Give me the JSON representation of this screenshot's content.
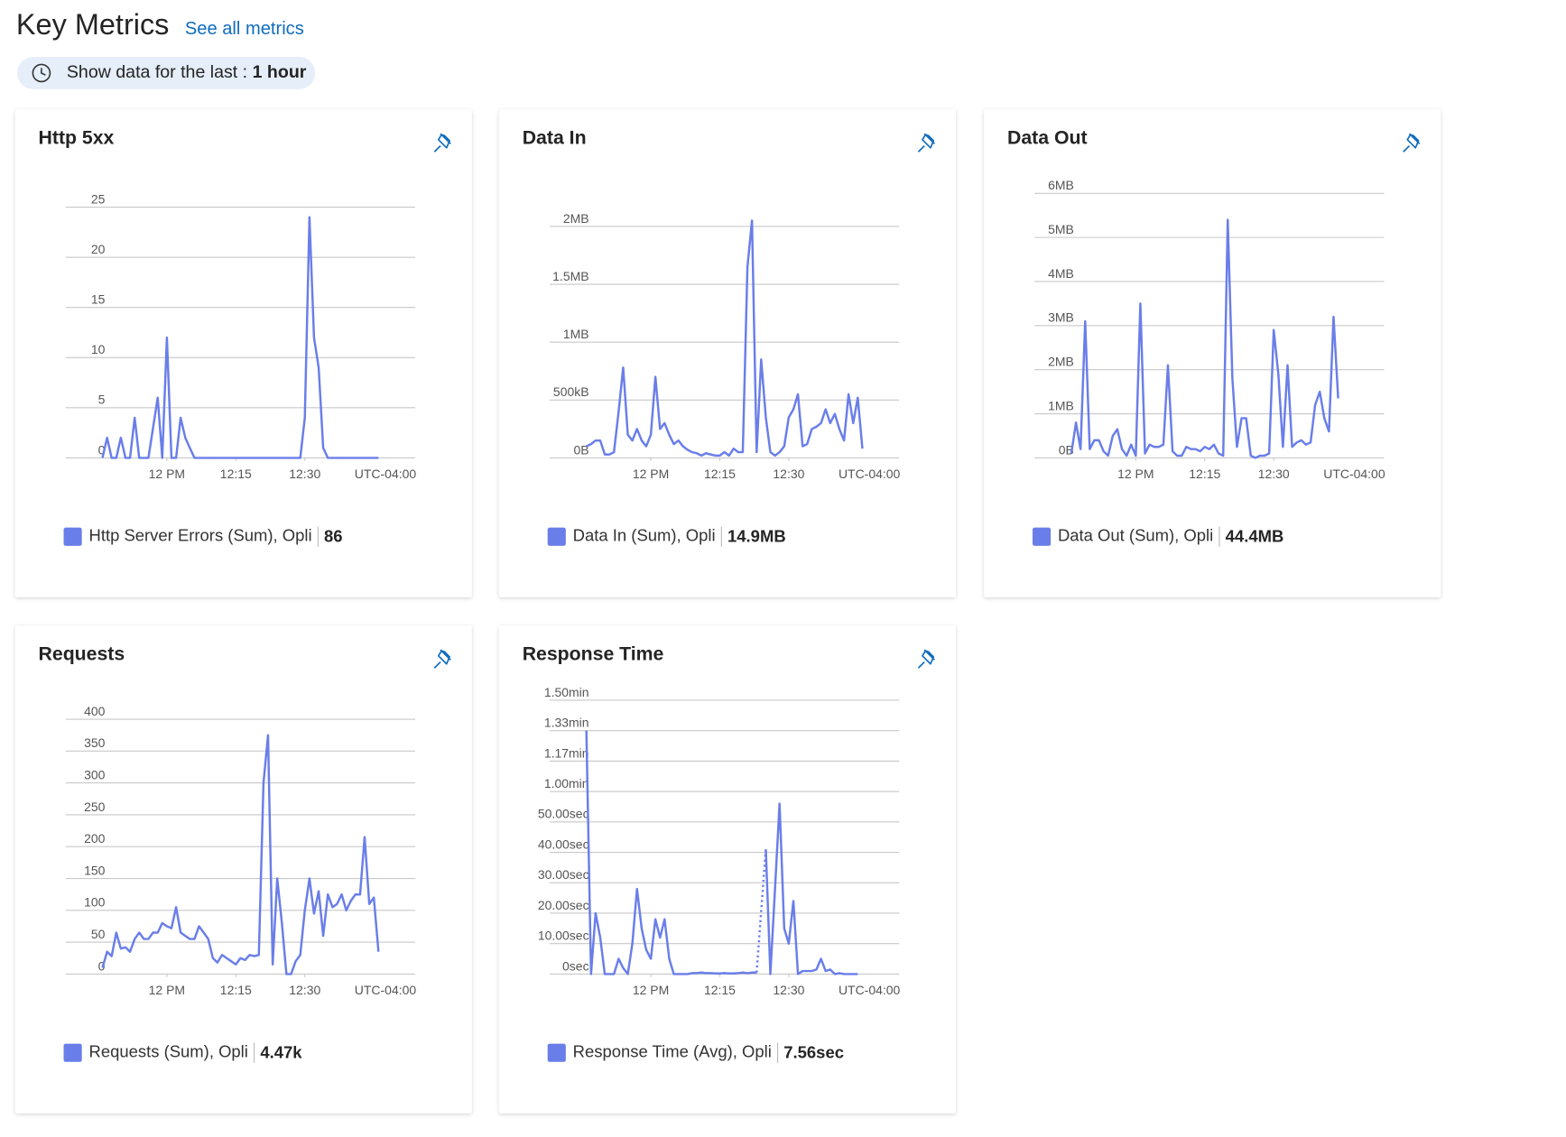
{
  "header": {
    "title": "Key Metrics",
    "link": "See all metrics"
  },
  "time_filter": {
    "label": "Show data for the last :",
    "value": "1 hour"
  },
  "chart_data": [
    {
      "type": "line",
      "title": "Http 5xx",
      "timezone": "UTC-04:00",
      "grid": true,
      "xlim": [
        698,
        774
      ],
      "xticks": [
        {
          "value": 720,
          "label": "12 PM"
        },
        {
          "value": 735,
          "label": "12:15"
        },
        {
          "value": 750,
          "label": "12:30"
        }
      ],
      "ylim": [
        0,
        27.7
      ],
      "yticks": [
        0,
        5,
        10,
        15,
        20,
        25
      ],
      "x": [
        706,
        707,
        708,
        709,
        710,
        711,
        712,
        713,
        714,
        715,
        716,
        717,
        718,
        719,
        720,
        721,
        722,
        723,
        724,
        725,
        726,
        727,
        728,
        729,
        730,
        731,
        732,
        733,
        734,
        735,
        736,
        737,
        738,
        739,
        740,
        741,
        742,
        743,
        744,
        745,
        746,
        747,
        748,
        749,
        750,
        751,
        752,
        753,
        754,
        755,
        756,
        757,
        758,
        759,
        760,
        761,
        762,
        763,
        764,
        765,
        766
      ],
      "series": [
        {
          "name": "Http Server Errors (Sum), Opli",
          "color": "#6a7ee9",
          "total": "86",
          "values": [
            0,
            2,
            0,
            0,
            2,
            0,
            0,
            4,
            0,
            0,
            0,
            3,
            6,
            0,
            12,
            0,
            0,
            4,
            2,
            1,
            0,
            0,
            0,
            0,
            0,
            0,
            0,
            0,
            0,
            0,
            0,
            0,
            0,
            0,
            0,
            0,
            0,
            0,
            0,
            0,
            0,
            0,
            0,
            0,
            4,
            24,
            12,
            9,
            1,
            0,
            0,
            0,
            0,
            0,
            0,
            0,
            0,
            0,
            0,
            0,
            0
          ]
        }
      ]
    },
    {
      "type": "line",
      "title": "Data In",
      "timezone": "UTC-04:00",
      "grid": true,
      "xlim": [
        698,
        774
      ],
      "xticks": [
        {
          "value": 720,
          "label": "12 PM"
        },
        {
          "value": 735,
          "label": "12:15"
        },
        {
          "value": 750,
          "label": "12:30"
        }
      ],
      "ylim": [
        0,
        2.4
      ],
      "yticks": [
        {
          "value": 0,
          "label": "0B"
        },
        {
          "value": 0.5,
          "label": "500kB"
        },
        {
          "value": 1,
          "label": "1MB"
        },
        {
          "value": 1.5,
          "label": "1.5MB"
        },
        {
          "value": 2,
          "label": "2MB"
        }
      ],
      "x": [
        706,
        707,
        708,
        709,
        710,
        711,
        712,
        713,
        714,
        715,
        716,
        717,
        718,
        719,
        720,
        721,
        722,
        723,
        724,
        725,
        726,
        727,
        728,
        729,
        730,
        731,
        732,
        733,
        734,
        735,
        736,
        737,
        738,
        739,
        740,
        741,
        742,
        743,
        744,
        745,
        746,
        747,
        748,
        749,
        750,
        751,
        752,
        753,
        754,
        755,
        756,
        757,
        758,
        759,
        760,
        761,
        762,
        763,
        764,
        765,
        766
      ],
      "series": [
        {
          "name": "Data In (Sum), Opli",
          "color": "#6a7ee9",
          "total": "14.9MB",
          "values": [
            0.1,
            0.12,
            0.15,
            0.15,
            0.03,
            0.03,
            0.05,
            0.4,
            0.78,
            0.2,
            0.15,
            0.25,
            0.15,
            0.1,
            0.2,
            0.7,
            0.25,
            0.3,
            0.2,
            0.12,
            0.15,
            0.1,
            0.07,
            0.05,
            0.04,
            0.02,
            0.04,
            0.03,
            0.02,
            0.02,
            0.05,
            0.02,
            0.08,
            0.05,
            0.05,
            1.65,
            2.05,
            0.05,
            0.85,
            0.35,
            0.05,
            0.02,
            0.05,
            0.1,
            0.35,
            0.42,
            0.55,
            0.1,
            0.12,
            0.25,
            0.27,
            0.3,
            0.42,
            0.3,
            0.38,
            0.25,
            0.15,
            0.55,
            0.3,
            0.52,
            0.08
          ]
        }
      ]
    },
    {
      "type": "line",
      "title": "Data Out",
      "timezone": "UTC-04:00",
      "grid": true,
      "xlim": [
        698,
        774
      ],
      "xticks": [
        {
          "value": 720,
          "label": "12 PM"
        },
        {
          "value": 735,
          "label": "12:15"
        },
        {
          "value": 750,
          "label": "12:30"
        }
      ],
      "ylim": [
        0,
        6.3
      ],
      "yticks": [
        {
          "value": 0,
          "label": "0B"
        },
        {
          "value": 1,
          "label": "1MB"
        },
        {
          "value": 2,
          "label": "2MB"
        },
        {
          "value": 3,
          "label": "3MB"
        },
        {
          "value": 4,
          "label": "4MB"
        },
        {
          "value": 5,
          "label": "5MB"
        },
        {
          "value": 6,
          "label": "6MB"
        }
      ],
      "x": [
        706,
        707,
        708,
        709,
        710,
        711,
        712,
        713,
        714,
        715,
        716,
        717,
        718,
        719,
        720,
        721,
        722,
        723,
        724,
        725,
        726,
        727,
        728,
        729,
        730,
        731,
        732,
        733,
        734,
        735,
        736,
        737,
        738,
        739,
        740,
        741,
        742,
        743,
        744,
        745,
        746,
        747,
        748,
        749,
        750,
        751,
        752,
        753,
        754,
        755,
        756,
        757,
        758,
        759,
        760,
        761,
        762,
        763,
        764,
        765,
        766
      ],
      "series": [
        {
          "name": "Data Out (Sum), Opli",
          "color": "#6a7ee9",
          "total": "44.4MB",
          "values": [
            0.1,
            0.8,
            0.2,
            3.1,
            0.2,
            0.4,
            0.4,
            0.15,
            0.05,
            0.5,
            0.65,
            0.2,
            0.05,
            0.3,
            0.05,
            3.5,
            0.1,
            0.3,
            0.25,
            0.25,
            0.3,
            2.1,
            0.15,
            0.05,
            0.05,
            0.25,
            0.2,
            0.2,
            0.15,
            0.25,
            0.2,
            0.3,
            0.1,
            0.05,
            5.4,
            1.8,
            0.25,
            0.9,
            0.9,
            0.05,
            0,
            0.05,
            0.05,
            0.1,
            2.9,
            1.9,
            0.25,
            2.1,
            0.25,
            0.35,
            0.4,
            0.3,
            0.35,
            1.2,
            1.5,
            0.9,
            0.6,
            3.2,
            1.35,
            null,
            null
          ]
        }
      ]
    },
    {
      "type": "line",
      "title": "Requests",
      "timezone": "UTC-04:00",
      "grid": true,
      "xlim": [
        698,
        774
      ],
      "xticks": [
        {
          "value": 720,
          "label": "12 PM"
        },
        {
          "value": 735,
          "label": "12:15"
        },
        {
          "value": 750,
          "label": "12:30"
        }
      ],
      "ylim": [
        0,
        436
      ],
      "yticks": [
        0,
        50,
        100,
        150,
        200,
        250,
        300,
        350,
        400
      ],
      "x": [
        706,
        707,
        708,
        709,
        710,
        711,
        712,
        713,
        714,
        715,
        716,
        717,
        718,
        719,
        720,
        721,
        722,
        723,
        724,
        725,
        726,
        727,
        728,
        729,
        730,
        731,
        732,
        733,
        734,
        735,
        736,
        737,
        738,
        739,
        740,
        741,
        742,
        743,
        744,
        745,
        746,
        747,
        748,
        749,
        750,
        751,
        752,
        753,
        754,
        755,
        756,
        757,
        758,
        759,
        760,
        761,
        762,
        763,
        764,
        765,
        766
      ],
      "series": [
        {
          "name": "Requests (Sum), Opli",
          "color": "#6a7ee9",
          "total": "4.47k",
          "values": [
            10,
            35,
            28,
            65,
            40,
            42,
            35,
            55,
            65,
            55,
            55,
            65,
            65,
            80,
            75,
            72,
            105,
            65,
            60,
            55,
            55,
            75,
            65,
            55,
            25,
            18,
            30,
            25,
            20,
            15,
            25,
            22,
            30,
            28,
            30,
            300,
            375,
            15,
            150,
            80,
            0,
            0,
            20,
            30,
            100,
            150,
            95,
            130,
            60,
            125,
            105,
            110,
            125,
            100,
            115,
            125,
            125,
            215,
            110,
            120,
            35
          ]
        }
      ]
    },
    {
      "type": "line",
      "title": "Response Time",
      "timezone": "UTC-04:00",
      "grid": true,
      "gap_style": "dotted",
      "xlim": [
        698,
        774
      ],
      "xticks": [
        {
          "value": 720,
          "label": "12 PM"
        },
        {
          "value": 735,
          "label": "12:15"
        },
        {
          "value": 750,
          "label": "12:30"
        }
      ],
      "ylim": [
        0,
        91.3
      ],
      "yticks": [
        {
          "value": 0,
          "label": "0sec"
        },
        {
          "value": 10,
          "label": "10.00sec"
        },
        {
          "value": 20,
          "label": "20.00sec"
        },
        {
          "value": 30,
          "label": "30.00sec"
        },
        {
          "value": 40,
          "label": "40.00sec"
        },
        {
          "value": 50,
          "label": "50.00sec"
        },
        {
          "value": 60,
          "label": "1.00min"
        },
        {
          "value": 70,
          "label": "1.17min"
        },
        {
          "value": 80,
          "label": "1.33min"
        },
        {
          "value": 90,
          "label": "1.50min"
        }
      ],
      "x": [
        706,
        707,
        708,
        709,
        710,
        711,
        712,
        713,
        714,
        715,
        716,
        717,
        718,
        719,
        720,
        721,
        722,
        723,
        724,
        725,
        726,
        727,
        728,
        729,
        730,
        731,
        732,
        733,
        734,
        735,
        736,
        737,
        738,
        739,
        740,
        741,
        742,
        743,
        744,
        745,
        746,
        747,
        748,
        749,
        750,
        751,
        752,
        753,
        754,
        755,
        756,
        757,
        758,
        759,
        760,
        761,
        762,
        763,
        764,
        765,
        766
      ],
      "series": [
        {
          "name": "Response Time (Avg), Opli",
          "color": "#6a7ee9",
          "total": "7.56sec",
          "values": [
            80,
            0,
            20,
            12,
            0,
            0,
            0,
            5,
            2,
            0,
            10,
            28,
            15,
            8,
            5,
            18,
            12,
            18,
            5,
            0,
            0,
            0,
            0,
            0.3,
            0.3,
            0.5,
            0.3,
            0.3,
            0.2,
            0.2,
            0.3,
            0.2,
            0.2,
            0.3,
            0.5,
            0.3,
            0.5,
            0.5,
            null,
            41,
            0,
            28,
            56,
            15,
            10,
            24,
            0,
            1,
            1,
            1,
            1.5,
            5,
            1,
            1.5,
            0,
            0.3,
            0,
            0,
            0,
            0,
            null
          ]
        }
      ]
    }
  ]
}
